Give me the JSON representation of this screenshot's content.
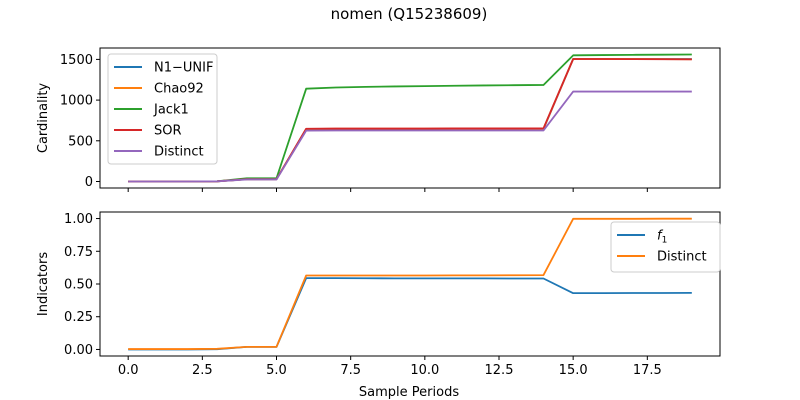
{
  "figure": {
    "title": "nomen (Q15238609)",
    "xlabel": "Sample Periods"
  },
  "chart_data": [
    {
      "type": "line",
      "ylabel": "Cardinality",
      "xlim": [
        -0.95,
        19.95
      ],
      "ylim": [
        -80,
        1640
      ],
      "xticks": [
        0.0,
        2.5,
        5.0,
        7.5,
        10.0,
        12.5,
        15.0,
        17.5
      ],
      "xtick_labels": [],
      "yticks": [
        0,
        500,
        1000,
        1500
      ],
      "ytick_labels": [
        "0",
        "500",
        "1000",
        "1500"
      ],
      "legend_position": "upper-left",
      "x": [
        0,
        1,
        2,
        3,
        4,
        5,
        6,
        7,
        8,
        9,
        10,
        11,
        12,
        13,
        14,
        15,
        16,
        17,
        18,
        19
      ],
      "series": [
        {
          "name": "N1−UNIF",
          "color": "#1f77b4",
          "values": [
            0,
            0,
            0,
            2,
            28,
            28,
            640,
            642,
            642,
            642,
            642,
            644,
            644,
            644,
            645,
            1505,
            1505,
            1505,
            1505,
            1505
          ]
        },
        {
          "name": "Chao92",
          "color": "#ff7f0e",
          "values": [
            0,
            0,
            0,
            2,
            28,
            28,
            645,
            647,
            647,
            647,
            647,
            649,
            649,
            649,
            650,
            1505,
            1505,
            1504,
            1503,
            1502
          ]
        },
        {
          "name": "Jack1",
          "color": "#2ca02c",
          "values": [
            0,
            0,
            0,
            3,
            40,
            40,
            1140,
            1155,
            1162,
            1168,
            1172,
            1176,
            1180,
            1183,
            1186,
            1550,
            1553,
            1556,
            1558,
            1560
          ]
        },
        {
          "name": "SOR",
          "color": "#d62728",
          "values": [
            0,
            0,
            0,
            2,
            28,
            28,
            648,
            650,
            650,
            650,
            650,
            652,
            652,
            652,
            653,
            1505,
            1505,
            1503,
            1502,
            1500
          ]
        },
        {
          "name": "Distinct",
          "color": "#9467bd",
          "values": [
            0,
            0,
            0,
            2,
            25,
            25,
            625,
            626,
            626,
            626,
            626,
            627,
            627,
            627,
            627,
            1105,
            1105,
            1105,
            1105,
            1105
          ]
        }
      ]
    },
    {
      "type": "line",
      "ylabel": "Indicators",
      "xlim": [
        -0.95,
        19.95
      ],
      "ylim": [
        -0.05,
        1.05
      ],
      "xticks": [
        0.0,
        2.5,
        5.0,
        7.5,
        10.0,
        12.5,
        15.0,
        17.5
      ],
      "xtick_labels": [
        "0.0",
        "2.5",
        "5.0",
        "7.5",
        "10.0",
        "12.5",
        "15.0",
        "17.5"
      ],
      "yticks": [
        0.0,
        0.25,
        0.5,
        0.75,
        1.0
      ],
      "ytick_labels": [
        "0.00",
        "0.25",
        "0.50",
        "0.75",
        "1.00"
      ],
      "legend_position": "upper-right",
      "x": [
        0,
        1,
        2,
        3,
        4,
        5,
        6,
        7,
        8,
        9,
        10,
        11,
        12,
        13,
        14,
        15,
        16,
        17,
        18,
        19
      ],
      "series": [
        {
          "name": "f1",
          "color": "#1f77b4",
          "values": [
            0,
            0,
            0,
            0.002,
            0.02,
            0.02,
            0.545,
            0.545,
            0.544,
            0.543,
            0.543,
            0.543,
            0.543,
            0.542,
            0.542,
            0.43,
            0.43,
            0.431,
            0.431,
            0.432
          ]
        },
        {
          "name": "Distinct",
          "color": "#ff7f0e",
          "values": [
            0.003,
            0.003,
            0.003,
            0.005,
            0.02,
            0.02,
            0.565,
            0.565,
            0.565,
            0.565,
            0.565,
            0.566,
            0.566,
            0.567,
            0.568,
            0.998,
            0.998,
            0.998,
            0.999,
            0.999
          ]
        }
      ]
    }
  ]
}
